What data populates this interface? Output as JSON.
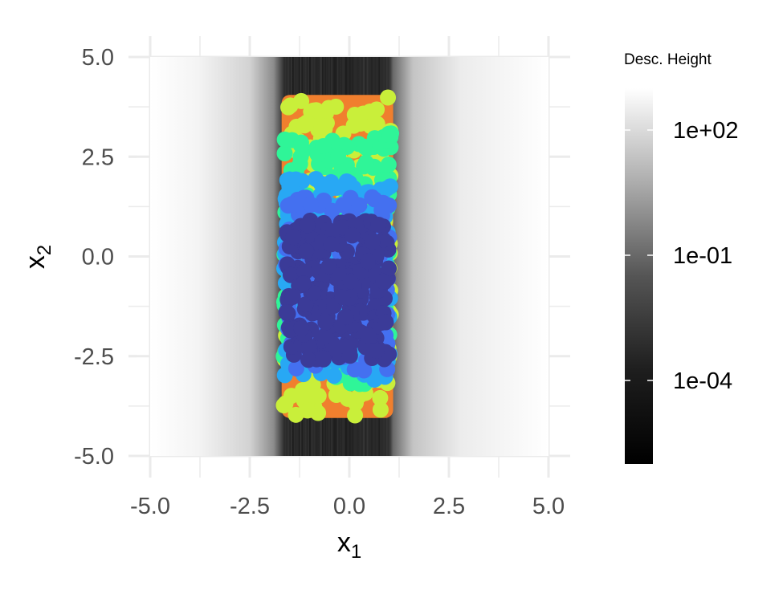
{
  "chart_data": {
    "type": "heatmap",
    "xlabel": "x",
    "xlabel_sub": "1",
    "ylabel": "x",
    "ylabel_sub": "2",
    "xlim": [
      -5,
      5
    ],
    "ylim": [
      -5,
      5
    ],
    "x_ticks": [
      -5.0,
      -2.5,
      0.0,
      2.5,
      5.0
    ],
    "y_ticks": [
      -5.0,
      -2.5,
      0.0,
      2.5,
      5.0
    ],
    "x_tick_labels": [
      "-5.0",
      "-2.5",
      "0.0",
      "2.5",
      "5.0"
    ],
    "y_tick_labels": [
      "5.0",
      "2.5",
      "0.0",
      "-2.5",
      "-5.0"
    ],
    "grid": true,
    "background_heatmap": {
      "description_scale": "log10",
      "dark_band_x": [
        -1.65,
        1.0
      ],
      "colors": [
        "#000000",
        "#ffffff"
      ]
    },
    "point_cloud": {
      "x_range": [
        -1.7,
        1.1
      ],
      "y_range": [
        -4.05,
        4.05
      ],
      "colors_outer_to_inner": [
        "#f07f2e",
        "#c9ef3a",
        "#2ff598",
        "#28a8f4",
        "#4470f0",
        "#3b3b98"
      ]
    },
    "legend": {
      "title": "Desc. Height",
      "position": "right",
      "ticks": [
        "1e+02",
        "1e-01",
        "1e-04"
      ],
      "tick_values_log10": [
        2,
        -1,
        -4
      ],
      "range_log10": [
        -6,
        3
      ]
    }
  }
}
